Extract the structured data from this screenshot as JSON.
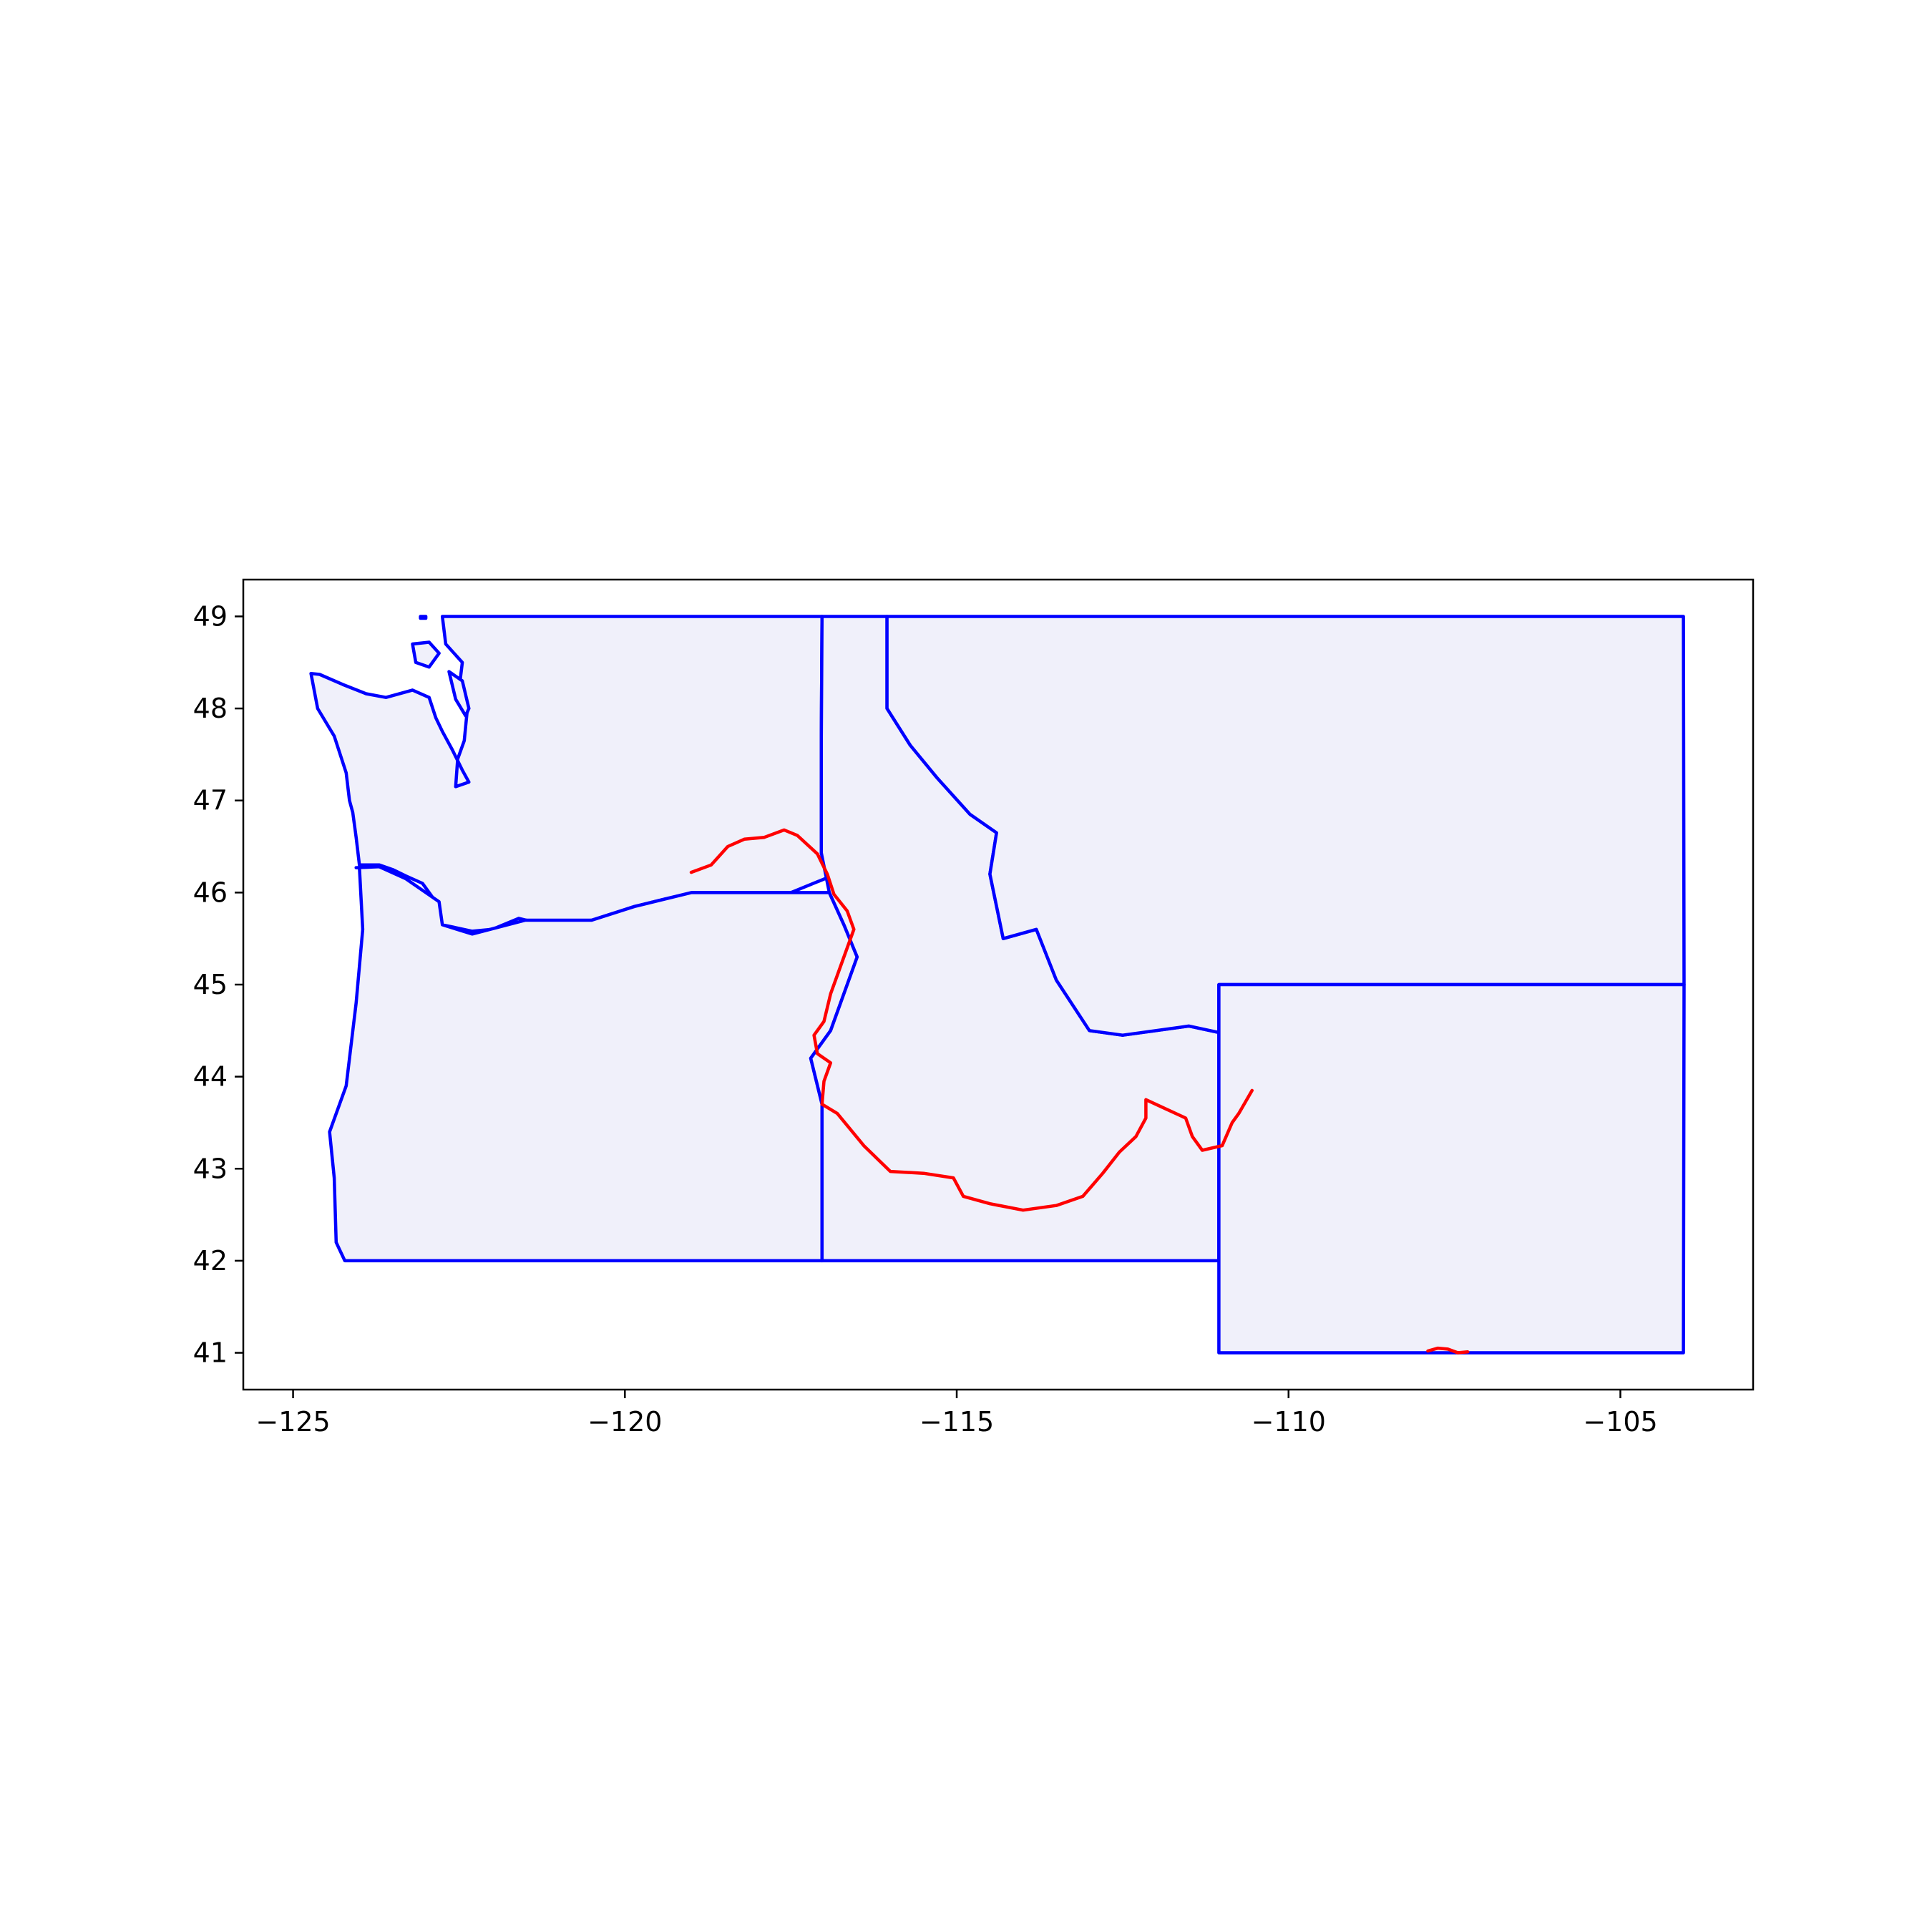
{
  "chart_data": {
    "type": "map",
    "xlim": [
      -125.75,
      -103
    ],
    "ylim": [
      40.6,
      49.4
    ],
    "x_ticks": [
      -125,
      -120,
      -115,
      -110,
      -105
    ],
    "y_ticks": [
      41,
      42,
      43,
      44,
      45,
      46,
      47,
      48,
      49
    ],
    "x_tick_labels": [
      "−125",
      "−120",
      "−115",
      "−110",
      "−105"
    ],
    "y_tick_labels": [
      "41",
      "42",
      "43",
      "44",
      "45",
      "46",
      "47",
      "48",
      "49"
    ],
    "grid": false,
    "legend": null,
    "colors": {
      "region_fill": "#f0f0fa",
      "region_edge": "#0000ff",
      "river": "#ff0000",
      "axes": "#000000",
      "background": "#ffffff"
    },
    "regions": [
      {
        "id": "washington",
        "points": [
          [
            -124.73,
            48.38
          ],
          [
            -124.6,
            48.37
          ],
          [
            -124.25,
            48.26
          ],
          [
            -123.9,
            48.16
          ],
          [
            -123.6,
            48.12
          ],
          [
            -123.2,
            48.2
          ],
          [
            -122.95,
            48.12
          ],
          [
            -122.85,
            47.9
          ],
          [
            -122.75,
            47.75
          ],
          [
            -122.6,
            47.55
          ],
          [
            -122.45,
            47.33
          ],
          [
            -122.35,
            47.2
          ],
          [
            -122.55,
            47.15
          ],
          [
            -122.52,
            47.45
          ],
          [
            -122.42,
            47.65
          ],
          [
            -122.38,
            47.95
          ],
          [
            -122.5,
            48.2
          ],
          [
            -122.45,
            48.5
          ],
          [
            -122.7,
            48.7
          ],
          [
            -122.75,
            49.0
          ],
          [
            -120.5,
            49.0
          ],
          [
            -117.03,
            49.0
          ],
          [
            -117.04,
            47.7
          ],
          [
            -117.04,
            46.43
          ],
          [
            -116.92,
            46.17
          ],
          [
            -117.5,
            46.0
          ],
          [
            -118.98,
            46.0
          ],
          [
            -119.4,
            45.93
          ],
          [
            -119.85,
            45.85
          ],
          [
            -120.5,
            45.7
          ],
          [
            -121.2,
            45.65
          ],
          [
            -121.6,
            45.72
          ],
          [
            -122.0,
            45.6
          ],
          [
            -122.3,
            45.58
          ],
          [
            -122.75,
            45.65
          ],
          [
            -122.85,
            45.9
          ],
          [
            -123.05,
            46.1
          ],
          [
            -123.3,
            46.18
          ],
          [
            -123.5,
            46.25
          ],
          [
            -123.7,
            46.3
          ],
          [
            -124.0,
            46.3
          ],
          [
            -124.05,
            46.6
          ],
          [
            -124.1,
            46.87
          ],
          [
            -124.15,
            47.0
          ],
          [
            -124.2,
            47.3
          ],
          [
            -124.38,
            47.7
          ],
          [
            -124.63,
            48.0
          ],
          [
            -124.73,
            48.38
          ]
        ]
      },
      {
        "id": "oregon",
        "points": [
          [
            -124.05,
            46.27
          ],
          [
            -123.7,
            46.28
          ],
          [
            -123.3,
            46.15
          ],
          [
            -122.8,
            45.9
          ],
          [
            -122.75,
            45.65
          ],
          [
            -122.3,
            45.55
          ],
          [
            -121.5,
            45.7
          ],
          [
            -120.5,
            45.7
          ],
          [
            -119.85,
            45.85
          ],
          [
            -119.0,
            46.0
          ],
          [
            -116.92,
            46.0
          ],
          [
            -116.7,
            45.65
          ],
          [
            -116.5,
            45.3
          ],
          [
            -116.9,
            44.5
          ],
          [
            -117.2,
            44.2
          ],
          [
            -117.03,
            43.7
          ],
          [
            -117.03,
            42.0
          ],
          [
            -124.22,
            42.0
          ],
          [
            -124.35,
            42.2
          ],
          [
            -124.38,
            42.9
          ],
          [
            -124.45,
            43.4
          ],
          [
            -124.2,
            43.9
          ],
          [
            -124.05,
            44.8
          ],
          [
            -123.95,
            45.6
          ],
          [
            -124.0,
            46.27
          ],
          [
            -124.05,
            46.27
          ]
        ]
      },
      {
        "id": "idaho",
        "points": [
          [
            -117.03,
            49.0
          ],
          [
            -116.05,
            49.0
          ],
          [
            -116.05,
            48.0
          ],
          [
            -115.7,
            47.6
          ],
          [
            -115.3,
            47.25
          ],
          [
            -114.8,
            46.85
          ],
          [
            -114.4,
            46.65
          ],
          [
            -114.5,
            46.2
          ],
          [
            -114.3,
            45.5
          ],
          [
            -113.8,
            45.6
          ],
          [
            -113.5,
            45.05
          ],
          [
            -113.0,
            44.5
          ],
          [
            -112.5,
            44.45
          ],
          [
            -111.5,
            44.55
          ],
          [
            -111.05,
            44.48
          ],
          [
            -111.05,
            42.0
          ],
          [
            -117.03,
            42.0
          ],
          [
            -117.03,
            43.7
          ],
          [
            -117.2,
            44.2
          ],
          [
            -116.9,
            44.5
          ],
          [
            -116.5,
            45.3
          ],
          [
            -116.7,
            45.65
          ],
          [
            -116.92,
            46.0
          ],
          [
            -117.04,
            46.43
          ],
          [
            -117.04,
            47.7
          ],
          [
            -117.03,
            49.0
          ]
        ]
      },
      {
        "id": "montana",
        "points": [
          [
            -116.05,
            49.0
          ],
          [
            -110.0,
            49.0
          ],
          [
            -104.05,
            49.0
          ],
          [
            -104.04,
            45.0
          ],
          [
            -111.05,
            45.0
          ],
          [
            -111.05,
            44.48
          ],
          [
            -111.5,
            44.55
          ],
          [
            -112.5,
            44.45
          ],
          [
            -113.0,
            44.5
          ],
          [
            -113.5,
            45.05
          ],
          [
            -113.8,
            45.6
          ],
          [
            -114.3,
            45.5
          ],
          [
            -114.5,
            46.2
          ],
          [
            -114.4,
            46.65
          ],
          [
            -114.8,
            46.85
          ],
          [
            -115.3,
            47.25
          ],
          [
            -115.7,
            47.6
          ],
          [
            -116.05,
            48.0
          ],
          [
            -116.05,
            49.0
          ]
        ]
      },
      {
        "id": "wyoming",
        "points": [
          [
            -111.05,
            45.0
          ],
          [
            -104.04,
            45.0
          ],
          [
            -104.05,
            41.0
          ],
          [
            -111.05,
            41.0
          ],
          [
            -111.05,
            45.0
          ]
        ]
      }
    ],
    "islands": [
      {
        "id": "san-juan-islands",
        "points": [
          [
            -123.2,
            48.7
          ],
          [
            -122.95,
            48.72
          ],
          [
            -122.8,
            48.6
          ],
          [
            -122.95,
            48.45
          ],
          [
            -123.15,
            48.5
          ],
          [
            -123.2,
            48.7
          ]
        ]
      },
      {
        "id": "whidbey-island",
        "points": [
          [
            -122.65,
            48.4
          ],
          [
            -122.45,
            48.3
          ],
          [
            -122.35,
            48.0
          ],
          [
            -122.4,
            47.92
          ],
          [
            -122.55,
            48.1
          ],
          [
            -122.65,
            48.4
          ]
        ]
      },
      {
        "id": "point-roberts",
        "points": [
          [
            -123.08,
            49.0
          ],
          [
            -123.0,
            49.0
          ],
          [
            -123.0,
            48.98
          ],
          [
            -123.08,
            48.98
          ],
          [
            -123.08,
            49.0
          ]
        ]
      }
    ],
    "rivers": [
      {
        "id": "snake-river",
        "points": [
          [
            -119.0,
            46.22
          ],
          [
            -118.7,
            46.3
          ],
          [
            -118.45,
            46.5
          ],
          [
            -118.2,
            46.58
          ],
          [
            -117.9,
            46.6
          ],
          [
            -117.6,
            46.68
          ],
          [
            -117.4,
            46.62
          ],
          [
            -117.1,
            46.42
          ],
          [
            -116.95,
            46.2
          ],
          [
            -116.85,
            45.98
          ],
          [
            -116.65,
            45.8
          ],
          [
            -116.55,
            45.6
          ],
          [
            -116.75,
            45.2
          ],
          [
            -116.9,
            44.9
          ],
          [
            -117.0,
            44.6
          ],
          [
            -117.15,
            44.45
          ],
          [
            -117.1,
            44.25
          ],
          [
            -116.9,
            44.15
          ],
          [
            -117.0,
            43.95
          ],
          [
            -117.03,
            43.7
          ],
          [
            -116.8,
            43.6
          ],
          [
            -116.4,
            43.25
          ],
          [
            -116.0,
            42.97
          ],
          [
            -115.5,
            42.95
          ],
          [
            -115.05,
            42.9
          ],
          [
            -114.9,
            42.7
          ],
          [
            -114.5,
            42.62
          ],
          [
            -114.0,
            42.55
          ],
          [
            -113.5,
            42.6
          ],
          [
            -113.1,
            42.7
          ],
          [
            -112.8,
            42.95
          ],
          [
            -112.55,
            43.18
          ],
          [
            -112.3,
            43.35
          ],
          [
            -112.15,
            43.55
          ],
          [
            -112.15,
            43.75
          ],
          [
            -111.85,
            43.65
          ],
          [
            -111.55,
            43.55
          ],
          [
            -111.45,
            43.35
          ],
          [
            -111.3,
            43.2
          ],
          [
            -111.0,
            43.25
          ],
          [
            -110.85,
            43.5
          ],
          [
            -110.75,
            43.6
          ],
          [
            -110.55,
            43.85
          ]
        ]
      },
      {
        "id": "wyoming-south-river",
        "points": [
          [
            -107.9,
            41.02
          ],
          [
            -107.75,
            41.05
          ],
          [
            -107.6,
            41.04
          ],
          [
            -107.45,
            41.0
          ],
          [
            -107.3,
            41.01
          ]
        ]
      }
    ]
  }
}
